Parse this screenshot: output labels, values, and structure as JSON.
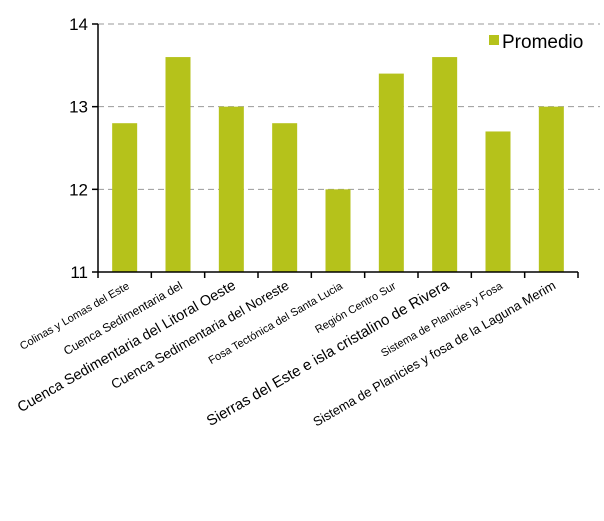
{
  "chart_data": {
    "type": "bar",
    "categories": [
      "Colinas y Lomas del Este",
      "Cuenca Sedimentaria del",
      "Cuenca Sedimentaria del Litoral Oeste",
      "Cuenca Sedimentaria del Noreste",
      "Fosa Tectónica del Santa Lucia",
      "Región Centro Sur",
      "Sierras del Este e isla cristalino de Rivera",
      "Sistema de Planicies y Fosa",
      "Sistema de Planicies y fosa de la Laguna Merim"
    ],
    "series": [
      {
        "name": "Promedio",
        "values": [
          12.8,
          13.6,
          13.0,
          12.8,
          12.0,
          13.4,
          13.6,
          12.7,
          13.0
        ],
        "color": "#b5c21b"
      }
    ],
    "ylim": [
      11,
      14
    ],
    "yticks": [
      "11",
      "12",
      "13",
      "14"
    ],
    "grid": true,
    "legend_position": "top-right",
    "title": "",
    "xlabel": "",
    "ylabel": ""
  }
}
